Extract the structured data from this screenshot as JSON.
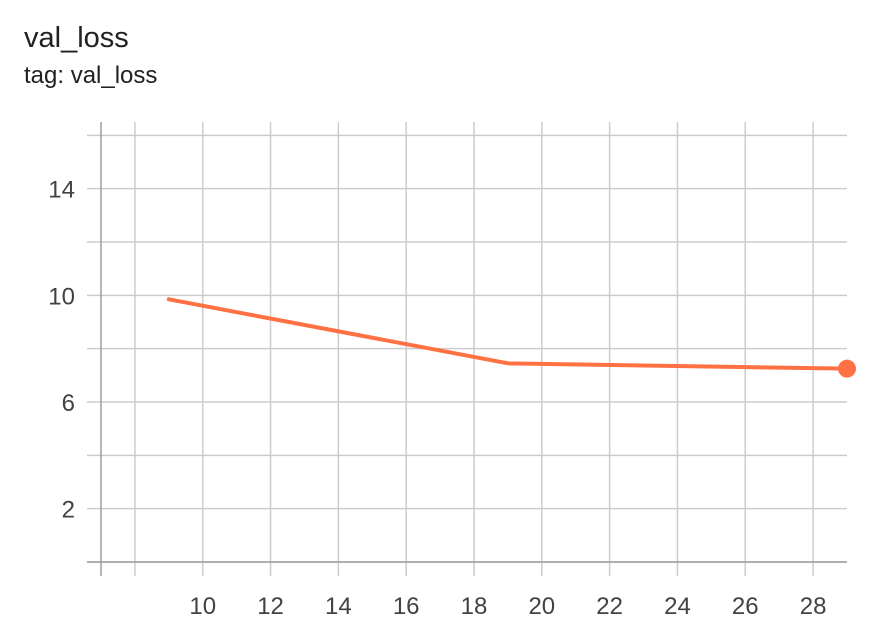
{
  "header": {
    "title": "val_loss",
    "subtitle": "tag: val_loss"
  },
  "colors": {
    "series": "#ff7043",
    "grid": "#cccccc",
    "axis": "#9e9e9e",
    "text": "#424242"
  },
  "chart_data": {
    "type": "line",
    "title": "val_loss",
    "subtitle": "tag: val_loss",
    "xlabel": "",
    "ylabel": "",
    "xlim": [
      7,
      29
    ],
    "ylim": [
      0,
      16.5
    ],
    "x_ticks": [
      10,
      12,
      14,
      16,
      18,
      20,
      22,
      24,
      26,
      28
    ],
    "y_ticks": [
      2,
      6,
      10,
      14
    ],
    "grid": true,
    "series": [
      {
        "x": [
          9,
          19,
          29
        ],
        "y": [
          9.85,
          7.45,
          7.25
        ],
        "marker_last": true
      }
    ]
  }
}
